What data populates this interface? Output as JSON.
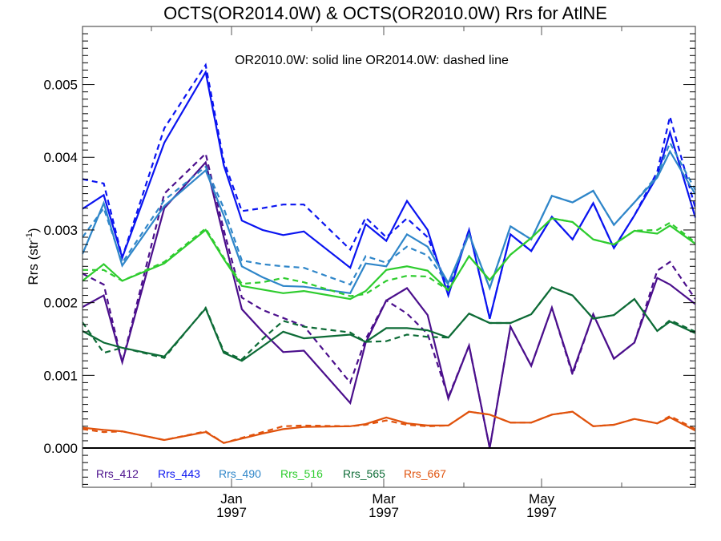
{
  "chart_data": {
    "type": "line",
    "title": "OCTS(OR2014.0W) & OCTS(OR2010.0W)  Rrs for AtlNE",
    "annotation": "OR2010.0W: solid line   OR2014.0W: dashed line",
    "xlabel": "",
    "ylabel": "Rrs (str",
    "ylabel_sup": "-1",
    "ylabel_close": ")",
    "x_unit": "days since 1997-01-01",
    "xlim": [
      -57,
      180
    ],
    "ylim": [
      -0.00054,
      0.0058
    ],
    "yticks": [
      0.0,
      0.001,
      0.002,
      0.003,
      0.004,
      0.005
    ],
    "ytick_labels": [
      "0.000",
      "0.001",
      "0.002",
      "0.003",
      "0.004",
      "0.005"
    ],
    "month_ticks": [
      {
        "day": -31,
        "label": "",
        "label2": "",
        "major": false
      },
      {
        "day": 0,
        "label": "Jan",
        "label2": "1997",
        "major": true
      },
      {
        "day": 31,
        "label": "",
        "label2": "",
        "major": false
      },
      {
        "day": 59,
        "label": "Mar",
        "label2": "1997",
        "major": true
      },
      {
        "day": 90,
        "label": "",
        "label2": "",
        "major": false
      },
      {
        "day": 120,
        "label": "May",
        "label2": "1997",
        "major": true
      },
      {
        "day": 151,
        "label": "",
        "label2": "",
        "major": false
      }
    ],
    "grid": false,
    "legend_position": "bottom-left",
    "x": [
      -57,
      -49,
      -42,
      -26,
      -10,
      -3,
      4,
      12,
      20,
      28,
      46,
      52,
      60,
      68,
      76,
      84,
      92,
      100,
      108,
      116,
      124,
      132,
      140,
      148,
      156,
      165,
      170,
      180
    ],
    "series": [
      {
        "name": "Rrs_412",
        "color": "#4b0f8c",
        "style": "solid",
        "values": [
          0.00194,
          0.0021,
          0.00118,
          0.0033,
          0.00393,
          0.0029,
          0.00191,
          0.0016,
          0.00132,
          0.00134,
          0.00062,
          0.00145,
          0.00203,
          0.0022,
          0.00183,
          0.00068,
          0.00141,
          0.0,
          0.00167,
          0.00113,
          0.00193,
          0.00104,
          0.00184,
          0.00123,
          0.00145,
          0.00234,
          0.00225,
          0.00198
        ]
      },
      {
        "name": "Rrs_412",
        "color": "#4b0f8c",
        "style": "dashed",
        "values": [
          0.0024,
          0.00225,
          0.00118,
          0.0035,
          0.00405,
          0.003,
          0.00207,
          0.0019,
          0.00179,
          0.00168,
          0.0009,
          0.0015,
          0.00203,
          0.00185,
          0.00157,
          0.0007,
          0.00141,
          0.0,
          0.00167,
          0.00113,
          0.00193,
          0.00101,
          0.00184,
          0.00123,
          0.00145,
          0.00244,
          0.00256,
          0.00205
        ]
      },
      {
        "name": "Rrs_443",
        "color": "#0a14f0",
        "style": "solid",
        "values": [
          0.00329,
          0.00348,
          0.00262,
          0.0042,
          0.00517,
          0.00389,
          0.00313,
          0.003,
          0.00293,
          0.00298,
          0.00248,
          0.00308,
          0.00285,
          0.0034,
          0.003,
          0.0021,
          0.003,
          0.00178,
          0.00294,
          0.00271,
          0.00318,
          0.00287,
          0.00337,
          0.00275,
          0.0032,
          0.00374,
          0.00434,
          0.00317
        ]
      },
      {
        "name": "Rrs_443",
        "color": "#0a14f0",
        "style": "dashed",
        "values": [
          0.0037,
          0.00364,
          0.00262,
          0.0044,
          0.00527,
          0.00395,
          0.00326,
          0.0033,
          0.00335,
          0.00335,
          0.00273,
          0.00317,
          0.0029,
          0.00316,
          0.0029,
          0.0022,
          0.003,
          0.00178,
          0.00294,
          0.00271,
          0.00318,
          0.00287,
          0.00337,
          0.00275,
          0.0032,
          0.0038,
          0.00456,
          0.0033
        ]
      },
      {
        "name": "Rrs_490",
        "color": "#2f86c9",
        "style": "solid",
        "values": [
          0.00267,
          0.00337,
          0.00251,
          0.00333,
          0.00382,
          0.0032,
          0.0025,
          0.00235,
          0.00223,
          0.00222,
          0.00213,
          0.00254,
          0.0025,
          0.00294,
          0.00277,
          0.00227,
          0.00294,
          0.0022,
          0.00305,
          0.00287,
          0.00347,
          0.00338,
          0.00354,
          0.00307,
          0.00338,
          0.00372,
          0.00408,
          0.00349
        ]
      },
      {
        "name": "Rrs_490",
        "color": "#2f86c9",
        "style": "dashed",
        "values": [
          0.0029,
          0.0033,
          0.00255,
          0.00341,
          0.00387,
          0.0033,
          0.00258,
          0.00253,
          0.0025,
          0.00248,
          0.00225,
          0.00264,
          0.00255,
          0.00277,
          0.00265,
          0.00225,
          0.00294,
          0.0022,
          0.00305,
          0.00287,
          0.00347,
          0.00338,
          0.00354,
          0.00307,
          0.00338,
          0.00375,
          0.0042,
          0.00355
        ]
      },
      {
        "name": "Rrs_516",
        "color": "#2ecc2e",
        "style": "solid",
        "values": [
          0.0023,
          0.00253,
          0.0023,
          0.00254,
          0.003,
          0.0026,
          0.00223,
          0.00218,
          0.00213,
          0.00216,
          0.00205,
          0.00216,
          0.00245,
          0.0025,
          0.00244,
          0.00217,
          0.00264,
          0.00231,
          0.00266,
          0.00289,
          0.00316,
          0.00311,
          0.00287,
          0.0028,
          0.00299,
          0.00295,
          0.00306,
          0.00281
        ]
      },
      {
        "name": "Rrs_516",
        "color": "#2ecc2e",
        "style": "dashed",
        "values": [
          0.00245,
          0.00245,
          0.0023,
          0.00256,
          0.00302,
          0.00262,
          0.00226,
          0.00228,
          0.00234,
          0.00228,
          0.00209,
          0.00212,
          0.0023,
          0.00237,
          0.00236,
          0.00217,
          0.00264,
          0.00231,
          0.00266,
          0.00289,
          0.00316,
          0.00311,
          0.00287,
          0.0028,
          0.00299,
          0.003,
          0.0031,
          0.00283
        ]
      },
      {
        "name": "Rrs_565",
        "color": "#0d6b36",
        "style": "solid",
        "values": [
          0.00161,
          0.00145,
          0.00138,
          0.00126,
          0.00192,
          0.00131,
          0.0012,
          0.0014,
          0.0016,
          0.00151,
          0.00156,
          0.00146,
          0.00165,
          0.00165,
          0.00162,
          0.00152,
          0.00185,
          0.00172,
          0.00172,
          0.00184,
          0.00221,
          0.0021,
          0.00178,
          0.00183,
          0.00205,
          0.00161,
          0.00174,
          0.00158
        ]
      },
      {
        "name": "Rrs_565",
        "color": "#0d6b36",
        "style": "dashed",
        "values": [
          0.00173,
          0.00131,
          0.00138,
          0.00124,
          0.00193,
          0.00133,
          0.00122,
          0.0015,
          0.00175,
          0.00167,
          0.00159,
          0.00146,
          0.00147,
          0.00156,
          0.00153,
          0.00152,
          0.00185,
          0.00172,
          0.00172,
          0.00184,
          0.00221,
          0.0021,
          0.00178,
          0.00183,
          0.00205,
          0.00161,
          0.00176,
          0.0016
        ]
      },
      {
        "name": "Rrs_667",
        "color": "#e0520c",
        "style": "solid",
        "values": [
          0.00028,
          0.00025,
          0.00023,
          0.00011,
          0.00022,
          7e-05,
          0.00013,
          0.0002,
          0.00026,
          0.00029,
          0.0003,
          0.00033,
          0.00042,
          0.00034,
          0.00031,
          0.00031,
          0.0005,
          0.00046,
          0.00035,
          0.00035,
          0.00046,
          0.0005,
          0.0003,
          0.00032,
          0.0004,
          0.00034,
          0.00042,
          0.00024
        ]
      },
      {
        "name": "Rrs_667",
        "color": "#e0520c",
        "style": "dashed",
        "values": [
          0.00026,
          0.00022,
          0.00023,
          0.00011,
          0.00023,
          7e-05,
          0.00014,
          0.00022,
          0.0003,
          0.00031,
          0.0003,
          0.00032,
          0.00038,
          0.00032,
          0.0003,
          0.00031,
          0.0005,
          0.00046,
          0.00035,
          0.00035,
          0.00046,
          0.0005,
          0.0003,
          0.00032,
          0.0004,
          0.00034,
          0.00044,
          0.00026
        ]
      }
    ],
    "legend": [
      {
        "label": "Rrs_412",
        "color": "#4b0f8c"
      },
      {
        "label": "Rrs_443",
        "color": "#0a14f0"
      },
      {
        "label": "Rrs_490",
        "color": "#2f86c9"
      },
      {
        "label": "Rrs_516",
        "color": "#2ecc2e"
      },
      {
        "label": "Rrs_565",
        "color": "#0d6b36"
      },
      {
        "label": "Rrs_667",
        "color": "#e0520c"
      }
    ]
  }
}
